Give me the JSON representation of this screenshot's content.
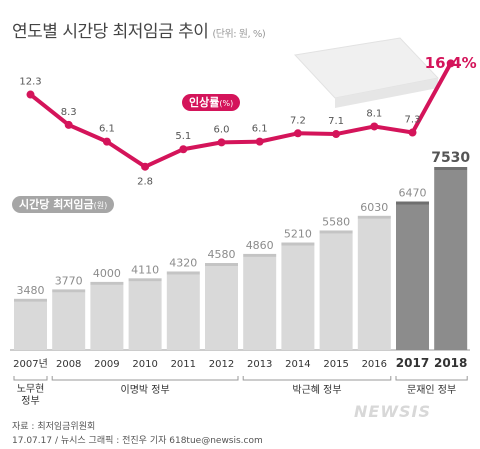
{
  "title": {
    "main": "연도별 시간당 최저임금 추이",
    "unit": "(단위: 원, %)"
  },
  "legend": {
    "rate_label": "인상률",
    "rate_unit": "(%)",
    "wage_label": "시간당 최저임금",
    "wage_unit": "(원)"
  },
  "chart_data": {
    "type": "bar",
    "categories": [
      "2007년",
      "2008",
      "2009",
      "2010",
      "2011",
      "2012",
      "2013",
      "2014",
      "2015",
      "2016",
      "2017",
      "2018"
    ],
    "series": [
      {
        "name": "시간당 최저임금",
        "values": [
          3480,
          3770,
          4000,
          4110,
          4320,
          4580,
          4860,
          5210,
          5580,
          6030,
          6470,
          7530
        ]
      },
      {
        "name": "인상률",
        "type": "line",
        "values": [
          12.3,
          8.3,
          6.1,
          2.8,
          5.1,
          6.0,
          6.1,
          7.2,
          7.1,
          8.1,
          7.3,
          16.4
        ]
      }
    ],
    "bar_labels": [
      "3480",
      "3770",
      "4000",
      "4110",
      "4320",
      "4580",
      "4860",
      "5210",
      "5580",
      "6030",
      "6470",
      "7530"
    ],
    "line_labels": [
      "12.3",
      "8.3",
      "6.1",
      "2.8",
      "5.1",
      "6.0",
      "6.1",
      "7.2",
      "7.1",
      "8.1",
      "7.3",
      "16.4%"
    ],
    "highlight_years": [
      "2017",
      "2018"
    ],
    "governments": [
      {
        "label": "노무현 정부",
        "lines": [
          "노무현",
          "정부"
        ],
        "from": 0,
        "to": 0
      },
      {
        "label": "이명박 정부",
        "from": 1,
        "to": 5
      },
      {
        "label": "박근혜 정부",
        "from": 6,
        "to": 9
      },
      {
        "label": "문재인 정부",
        "from": 10,
        "to": 11
      }
    ],
    "colors": {
      "bar": "#d9d9d9",
      "bar_highlight": "#8c8c8c",
      "line": "#d4145a",
      "label": "#8c8c8c"
    }
  },
  "source": "자료 : 최저임금위원회",
  "credit": "17.07.17 / 뉴시스 그래픽 : 전진우 기자 618tue@newsis.com",
  "logo": "NEWSIS"
}
